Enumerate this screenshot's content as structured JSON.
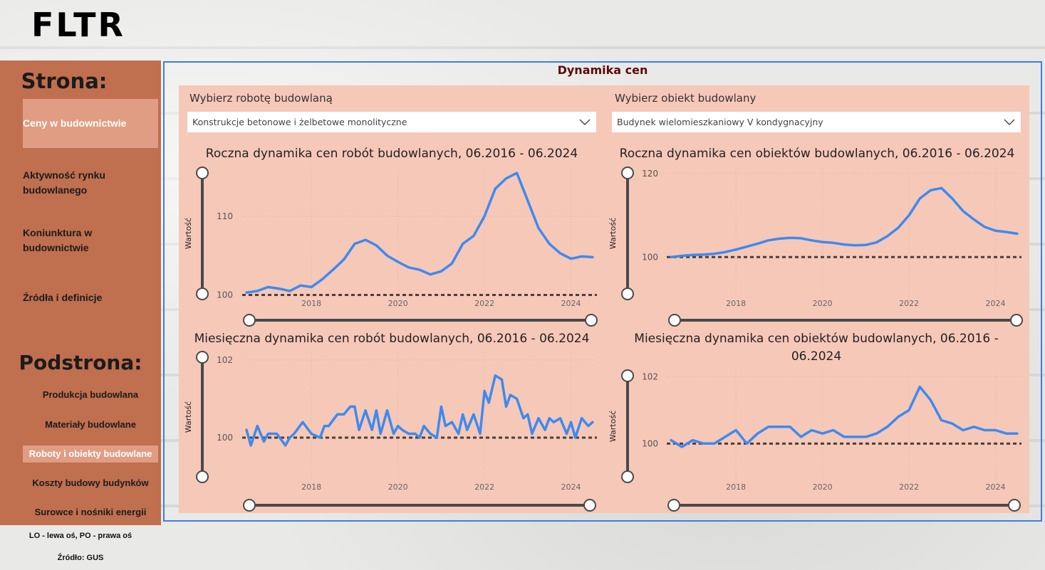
{
  "app": {
    "logo": "FLTR"
  },
  "sidebar": {
    "nav_title": "Strona:",
    "nav_items": [
      {
        "label": "Ceny w budownictwie",
        "active": true
      },
      {
        "label": "Aktywność rynku budowlanego",
        "active": false
      },
      {
        "label": "Koniunktura w budownictwie",
        "active": false
      },
      {
        "label": "Źródła i definicje",
        "active": false
      }
    ],
    "sub_title": "Podstrona:",
    "sub_items": [
      {
        "label": "Produkcja budowlana",
        "active": false
      },
      {
        "label": "Materiały budowlane",
        "active": false
      },
      {
        "label": "Roboty i obiekty budowlane",
        "active": true
      },
      {
        "label": "Koszty budowy budynków",
        "active": false
      },
      {
        "label": "Surowce i nośniki energii",
        "active": false
      }
    ],
    "footnote_axes": "LO - lewa oś, PO - prawa oś",
    "footnote_source": "Źródło: GUS"
  },
  "main": {
    "title": "Dynamika cen",
    "slicers": [
      {
        "label": "Wybierz robotę budowlaną",
        "value": "Konstrukcje betonowe i żelbetowe monolityczne"
      },
      {
        "label": "Wybierz obiekt budowlany",
        "value": "Budynek wielomieszkaniowy V kondygnacyjny"
      }
    ]
  },
  "colors": {
    "line": "#3d8af0",
    "reference": "#4a3f3a",
    "panel": "#f6c8b8",
    "sidebar": "#c06f4f",
    "active": "#e09d83"
  },
  "chart_data": [
    {
      "type": "line",
      "title": "Roczna dynamika cen robót budowlanych, 06.2016 - 06.2024",
      "ylabel": "Wartość",
      "x_ticks": [
        "2018",
        "2020",
        "2022",
        "2024"
      ],
      "y_ticks": [
        "100",
        "110"
      ],
      "ylim": [
        99.5,
        116.5
      ],
      "xlim": [
        2016.4,
        2024.6
      ],
      "reference_value": 100,
      "x": [
        2016.5,
        2016.75,
        2017.0,
        2017.25,
        2017.5,
        2017.75,
        2018.0,
        2018.25,
        2018.5,
        2018.75,
        2019.0,
        2019.25,
        2019.5,
        2019.75,
        2020.0,
        2020.25,
        2020.5,
        2020.75,
        2021.0,
        2021.25,
        2021.5,
        2021.75,
        2022.0,
        2022.25,
        2022.5,
        2022.75,
        2023.0,
        2023.25,
        2023.5,
        2023.75,
        2024.0,
        2024.25,
        2024.5
      ],
      "y": [
        100.3,
        100.5,
        101.0,
        100.8,
        100.5,
        101.2,
        101.0,
        102.0,
        103.2,
        104.5,
        106.5,
        107.0,
        106.3,
        105.0,
        104.2,
        103.5,
        103.2,
        102.6,
        103.0,
        104.0,
        106.5,
        107.5,
        110.0,
        113.5,
        114.8,
        115.5,
        112.0,
        108.5,
        106.5,
        105.3,
        104.6,
        104.9,
        104.8
      ]
    },
    {
      "type": "line",
      "title": "Roczna dynamika cen obiektów budowlanych, 06.2016 - 06.2024",
      "ylabel": "Wartość",
      "x_ticks": [
        "2018",
        "2020",
        "2022",
        "2024"
      ],
      "y_ticks": [
        "100",
        "120"
      ],
      "ylim": [
        90,
        122
      ],
      "xlim": [
        2016.4,
        2024.6
      ],
      "reference_value": 100,
      "x": [
        2016.5,
        2016.75,
        2017.0,
        2017.25,
        2017.5,
        2017.75,
        2018.0,
        2018.25,
        2018.5,
        2018.75,
        2019.0,
        2019.25,
        2019.5,
        2019.75,
        2020.0,
        2020.25,
        2020.5,
        2020.75,
        2021.0,
        2021.25,
        2021.5,
        2021.75,
        2022.0,
        2022.25,
        2022.5,
        2022.75,
        2023.0,
        2023.25,
        2023.5,
        2023.75,
        2024.0,
        2024.25,
        2024.5
      ],
      "y": [
        100.0,
        100.3,
        100.5,
        100.6,
        100.8,
        101.2,
        101.8,
        102.5,
        103.2,
        104.0,
        104.4,
        104.6,
        104.5,
        104.0,
        103.6,
        103.4,
        103.0,
        102.8,
        102.9,
        103.5,
        105.0,
        107.0,
        110.0,
        114.0,
        116.0,
        116.5,
        114.0,
        111.0,
        109.0,
        107.2,
        106.3,
        106.0,
        105.6
      ]
    },
    {
      "type": "line",
      "title": "Miesięczna dynamika cen robót budowlanych, 06.2016 - 06.2024",
      "ylabel": "Wartość",
      "x_ticks": [
        "2018",
        "2020",
        "2022",
        "2024"
      ],
      "y_ticks": [
        "100",
        "102"
      ],
      "ylim": [
        98.9,
        102.2
      ],
      "xlim": [
        2016.4,
        2024.6
      ],
      "reference_value": 100,
      "x": [
        2016.5,
        2016.6,
        2016.75,
        2016.9,
        2017.0,
        2017.2,
        2017.4,
        2017.5,
        2017.6,
        2017.8,
        2018.0,
        2018.2,
        2018.3,
        2018.4,
        2018.6,
        2018.75,
        2018.9,
        2019.0,
        2019.1,
        2019.25,
        2019.4,
        2019.5,
        2019.6,
        2019.75,
        2019.9,
        2020.0,
        2020.1,
        2020.25,
        2020.4,
        2020.5,
        2020.6,
        2020.75,
        2020.9,
        2021.0,
        2021.1,
        2021.25,
        2021.4,
        2021.5,
        2021.6,
        2021.75,
        2021.9,
        2022.0,
        2022.1,
        2022.25,
        2022.4,
        2022.5,
        2022.6,
        2022.75,
        2022.9,
        2023.0,
        2023.1,
        2023.25,
        2023.4,
        2023.5,
        2023.6,
        2023.75,
        2023.9,
        2024.0,
        2024.1,
        2024.25,
        2024.4,
        2024.5
      ],
      "y": [
        100.2,
        99.8,
        100.3,
        99.9,
        100.1,
        100.1,
        99.8,
        100.0,
        100.1,
        100.4,
        100.1,
        100.0,
        100.3,
        100.3,
        100.6,
        100.6,
        100.8,
        100.8,
        100.2,
        100.7,
        100.2,
        100.7,
        100.1,
        100.7,
        100.1,
        100.3,
        100.2,
        100.1,
        100.1,
        100.0,
        100.3,
        100.1,
        100.0,
        100.8,
        100.3,
        100.4,
        100.1,
        100.6,
        100.2,
        100.6,
        100.1,
        101.2,
        100.9,
        101.6,
        101.5,
        100.8,
        101.1,
        101.0,
        100.5,
        100.6,
        100.1,
        100.5,
        100.2,
        100.5,
        100.4,
        100.5,
        100.1,
        100.4,
        100.0,
        100.5,
        100.3,
        100.4
      ]
    },
    {
      "type": "line",
      "title": "Miesięczna dynamika cen obiektów budowlanych, 06.2016 - 06.2024",
      "ylabel": "Wartość",
      "x_ticks": [
        "2018",
        "2020",
        "2022",
        "2024"
      ],
      "y_ticks": [
        "100",
        "102"
      ],
      "ylim": [
        98.9,
        102.2
      ],
      "xlim": [
        2016.4,
        2024.6
      ],
      "reference_value": 100,
      "x": [
        2016.5,
        2016.75,
        2017.0,
        2017.25,
        2017.5,
        2017.75,
        2018.0,
        2018.25,
        2018.5,
        2018.75,
        2019.0,
        2019.25,
        2019.5,
        2019.75,
        2020.0,
        2020.25,
        2020.5,
        2020.75,
        2021.0,
        2021.25,
        2021.5,
        2021.75,
        2022.0,
        2022.25,
        2022.5,
        2022.75,
        2023.0,
        2023.25,
        2023.5,
        2023.75,
        2024.0,
        2024.25,
        2024.5
      ],
      "y": [
        100.1,
        99.9,
        100.1,
        100.0,
        100.0,
        100.2,
        100.4,
        100.0,
        100.3,
        100.5,
        100.5,
        100.5,
        100.2,
        100.4,
        100.3,
        100.4,
        100.2,
        100.2,
        100.2,
        100.3,
        100.5,
        100.8,
        101.0,
        101.7,
        101.3,
        100.7,
        100.6,
        100.4,
        100.5,
        100.4,
        100.4,
        100.3,
        100.3
      ]
    }
  ]
}
